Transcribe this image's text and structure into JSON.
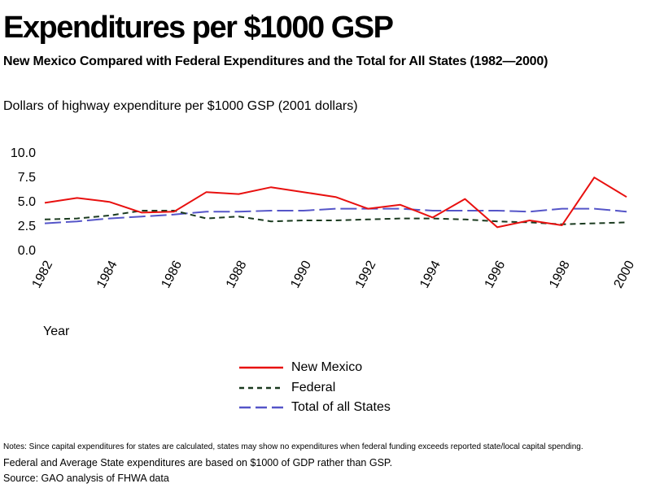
{
  "header": {
    "title": "Expenditures per $1000 GSP",
    "subtitle": "New Mexico Compared with Federal Expenditures and the Total for All States (1982—2000)"
  },
  "chart_data": {
    "type": "line",
    "title": "Expenditures per $1000 GSP",
    "subtitle": "New Mexico Compared with Federal Expenditures and the Total for All States (1982—2000)",
    "ylabel": "Dollars of highway expenditure per $1000 GSP (2001 dollars)",
    "xlabel": "Year",
    "x": [
      1982,
      1983,
      1984,
      1985,
      1986,
      1987,
      1988,
      1989,
      1990,
      1991,
      1992,
      1993,
      1994,
      1995,
      1996,
      1997,
      1998,
      1999,
      2000
    ],
    "xticks": [
      "1982",
      "1984",
      "1986",
      "1988",
      "1990",
      "1992",
      "1994",
      "1996",
      "1998",
      "2000"
    ],
    "yticks": [
      "10.0",
      "7.5",
      "5.0",
      "2.5",
      "0.0"
    ],
    "ylim": [
      0,
      10
    ],
    "xlim": [
      1982,
      2000
    ],
    "grid": false,
    "legend_position": "bottom",
    "series": [
      {
        "name": "New Mexico",
        "color": "#e8100f",
        "style": "solid",
        "values": [
          4.8,
          5.3,
          4.9,
          3.8,
          3.9,
          5.9,
          5.7,
          6.4,
          5.9,
          5.4,
          4.2,
          4.6,
          3.3,
          5.2,
          2.3,
          3.0,
          2.5,
          7.4,
          5.4
        ]
      },
      {
        "name": "Federal",
        "color": "#1a3a1f",
        "style": "dashed",
        "values": [
          3.1,
          3.2,
          3.5,
          4.0,
          4.0,
          3.2,
          3.4,
          2.9,
          3.0,
          3.0,
          3.1,
          3.2,
          3.2,
          3.1,
          2.9,
          2.8,
          2.6,
          2.7,
          2.8
        ]
      },
      {
        "name": "Total of all States",
        "color": "#5555c8",
        "style": "longdash",
        "values": [
          2.7,
          2.9,
          3.2,
          3.4,
          3.6,
          3.9,
          3.9,
          4.0,
          4.0,
          4.2,
          4.2,
          4.2,
          4.0,
          4.0,
          4.0,
          3.9,
          4.2,
          4.2,
          3.9
        ]
      }
    ]
  },
  "notes": {
    "line1": "Notes: Since capital expenditures for states are calculated, states may show no expenditures when federal funding exceeds reported state/local capital spending.",
    "line2": "Federal and Average State expenditures are based on $1000 of GDP rather than GSP.",
    "source": "Source: GAO analysis of FHWA data"
  }
}
